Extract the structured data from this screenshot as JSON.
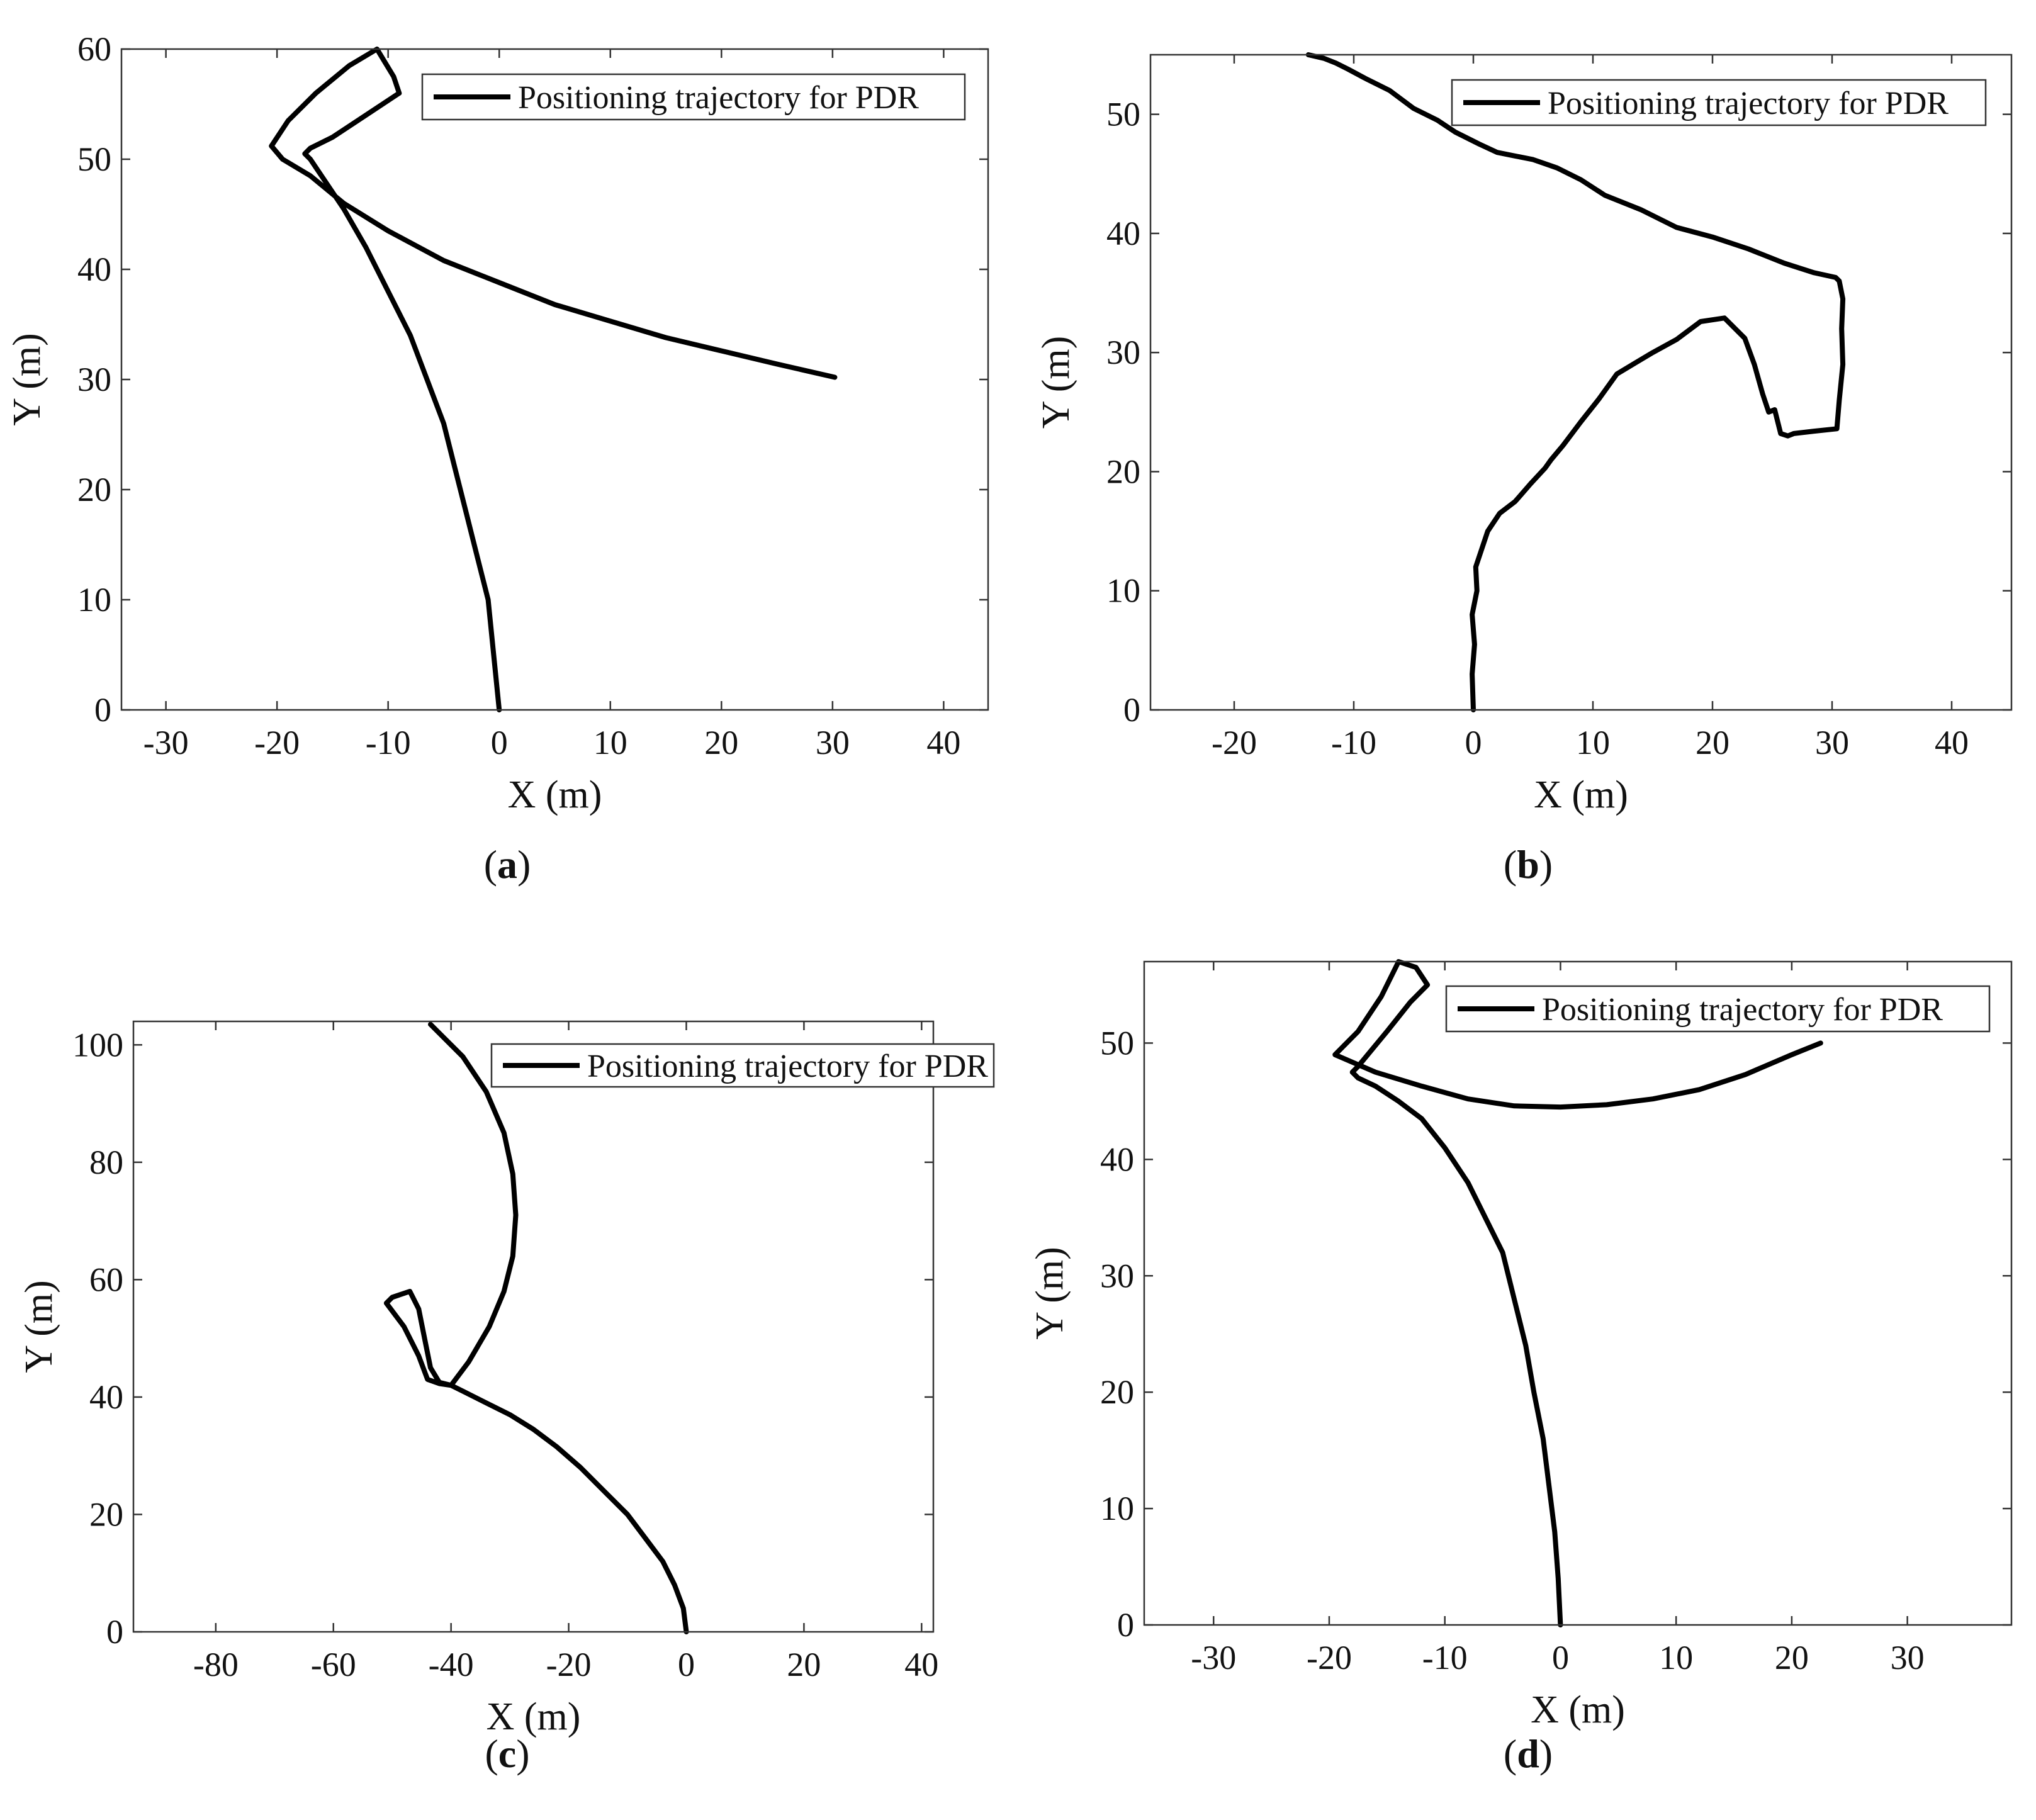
{
  "chart_data": [
    {
      "type": "line",
      "caption": "a",
      "xlabel": "X (m)",
      "ylabel": "Y (m)",
      "xlim": [
        -34,
        44
      ],
      "ylim": [
        0,
        60
      ],
      "xticks": [
        -30,
        -20,
        -10,
        0,
        10,
        20,
        30,
        40
      ],
      "yticks": [
        0,
        10,
        20,
        30,
        40,
        50,
        60
      ],
      "xtick_labels": [
        "-30",
        "-20",
        "-10",
        "0",
        "10",
        "20",
        "30",
        "40"
      ],
      "ytick_labels": [
        "0",
        "10",
        "20",
        "30",
        "40",
        "50",
        "60"
      ],
      "legend_position": "top-right",
      "grid": false,
      "series": [
        {
          "name": "Positioning trajectory for PDR",
          "color": "#000000",
          "x": [
            0,
            -0.5,
            -1,
            -2,
            -3,
            -4,
            -5,
            -6.5,
            -8,
            -10,
            -12,
            -14,
            -16,
            -17,
            -17.5,
            -17,
            -15,
            -12,
            -9,
            -9.5,
            -11,
            -13.5,
            -16.5,
            -19,
            -20.5,
            -19.5,
            -17,
            -14,
            -10,
            -5,
            0,
            5,
            10,
            15,
            20,
            25,
            30.2
          ],
          "y": [
            0,
            5,
            10,
            14,
            18,
            22,
            26,
            30,
            34,
            38,
            42,
            45.5,
            48.5,
            50,
            50.5,
            51,
            52,
            54,
            56,
            57.5,
            60,
            58.5,
            56,
            53.5,
            51.2,
            50,
            48.5,
            46,
            43.5,
            40.8,
            38.8,
            36.8,
            35.3,
            33.8,
            32.6,
            31.4,
            30.2
          ]
        }
      ]
    },
    {
      "type": "line",
      "caption": "b",
      "xlabel": "X (m)",
      "ylabel": "Y (m)",
      "xlim": [
        -27,
        45
      ],
      "ylim": [
        0,
        55
      ],
      "xticks": [
        -20,
        -10,
        0,
        10,
        20,
        30,
        40
      ],
      "yticks": [
        0,
        10,
        20,
        30,
        40,
        50
      ],
      "xtick_labels": [
        "-20",
        "-10",
        "0",
        "10",
        "20",
        "30",
        "40"
      ],
      "ytick_labels": [
        "0",
        "10",
        "20",
        "30",
        "40",
        "50"
      ],
      "legend_position": "top-right",
      "grid": false,
      "series": [
        {
          "name": "Positioning trajectory for PDR",
          "color": "#000000",
          "x": [
            0,
            -0.1,
            0.1,
            -0.1,
            0.3,
            0.2,
            0.7,
            1.2,
            2.2,
            3.5,
            4.8,
            6,
            6.5,
            7.5,
            9,
            10.5,
            12,
            13.5,
            15,
            17,
            19,
            21,
            22.7,
            23.5,
            24.2,
            24.7,
            25.2,
            25.7,
            26.3,
            26.8,
            28.5,
            30.4,
            30.6,
            30.9,
            30.8,
            30.9,
            30.6,
            30.3,
            28.5,
            26,
            23,
            20,
            17,
            14,
            11,
            9,
            7,
            5,
            3.5,
            2,
            0.5,
            -1.5,
            -3,
            -5,
            -7,
            -9,
            -10.5,
            -11.5,
            -12.5,
            -13.8
          ],
          "y": [
            0,
            3,
            5.5,
            8,
            10,
            12,
            13.5,
            15,
            16.5,
            17.5,
            19,
            20.3,
            21,
            22.2,
            24.2,
            26.1,
            28.2,
            29.1,
            30,
            31.1,
            32.6,
            32.9,
            31.2,
            29,
            26.5,
            25,
            25.2,
            23.2,
            23,
            23.2,
            23.4,
            23.6,
            26,
            29,
            32,
            34.5,
            36,
            36.3,
            36.7,
            37.5,
            38.7,
            39.7,
            40.5,
            42,
            43.2,
            44.5,
            45.5,
            46.2,
            46.5,
            46.8,
            47.5,
            48.5,
            49.5,
            50.5,
            52,
            53,
            53.8,
            54.3,
            54.7,
            55
          ]
        }
      ]
    },
    {
      "type": "line",
      "caption": "c",
      "xlabel": "X (m)",
      "ylabel": "Y (m)",
      "xlim": [
        -94,
        42
      ],
      "ylim": [
        0,
        104
      ],
      "xticks": [
        -80,
        -60,
        -40,
        -20,
        0,
        20,
        40
      ],
      "yticks": [
        0,
        20,
        40,
        60,
        80,
        100
      ],
      "xtick_labels": [
        "-80",
        "-60",
        "-40",
        "-20",
        "0",
        "20",
        "40"
      ],
      "ytick_labels": [
        "0",
        "20",
        "40",
        "60",
        "80",
        "100"
      ],
      "legend_position": "top-right",
      "grid": false,
      "series": [
        {
          "name": "Positioning trajectory for PDR",
          "color": "#000000",
          "x": [
            0,
            -0.5,
            -2,
            -4,
            -7,
            -10,
            -14,
            -18,
            -22,
            -26,
            -30,
            -34,
            -38,
            -40,
            -42,
            -44,
            -45.5,
            -48,
            -51,
            -50,
            -47,
            -45.5,
            -44.5,
            -43.5,
            -42,
            -40,
            -37,
            -33.5,
            -31,
            -29.5,
            -29,
            -29.5,
            -31,
            -34,
            -38,
            -43.5
          ],
          "y": [
            0,
            4,
            8,
            12,
            16,
            20,
            24,
            28,
            31.5,
            34.5,
            37,
            39,
            41,
            42,
            42.3,
            43,
            47,
            52,
            56,
            57,
            58,
            55,
            50,
            45,
            42.5,
            42,
            46,
            52,
            58,
            64,
            71,
            78,
            85,
            92,
            98,
            103.5
          ]
        }
      ]
    },
    {
      "type": "line",
      "caption": "d",
      "xlabel": "X (m)",
      "ylabel": "Y (m)",
      "xlim": [
        -36,
        39
      ],
      "ylim": [
        0,
        57
      ],
      "xticks": [
        -30,
        -20,
        -10,
        0,
        10,
        20,
        30
      ],
      "yticks": [
        0,
        10,
        20,
        30,
        40,
        50
      ],
      "xtick_labels": [
        "-30",
        "-20",
        "-10",
        "0",
        "10",
        "20",
        "30"
      ],
      "ytick_labels": [
        "0",
        "10",
        "20",
        "30",
        "40",
        "50"
      ],
      "legend_position": "top-right",
      "grid": false,
      "series": [
        {
          "name": "Positioning trajectory for PDR",
          "color": "#000000",
          "x": [
            0,
            -0.2,
            -0.5,
            -1,
            -1.5,
            -2.3,
            -3,
            -4,
            -5,
            -6.5,
            -8,
            -10,
            -12,
            -14,
            -16,
            -17.5,
            -18,
            -17.5,
            -15,
            -13,
            -11.5,
            -12.5,
            -14,
            -15.5,
            -17.5,
            -19.5,
            -16,
            -12,
            -8,
            -4,
            0,
            4,
            8,
            12,
            16,
            20,
            22.5
          ],
          "y": [
            0,
            4,
            8,
            12,
            16,
            20,
            24,
            28,
            32,
            35,
            38,
            41,
            43.5,
            45,
            46.3,
            47,
            47.5,
            48,
            51,
            53.5,
            55,
            56.5,
            57,
            54,
            51,
            49,
            47.5,
            46.3,
            45.2,
            44.6,
            44.5,
            44.7,
            45.2,
            46,
            47.3,
            49,
            50
          ]
        }
      ]
    }
  ]
}
